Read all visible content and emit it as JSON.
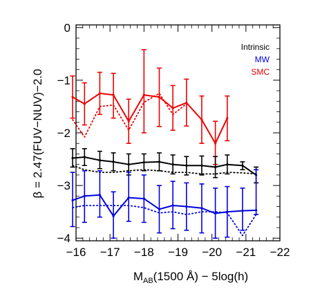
{
  "chart_data": {
    "type": "line",
    "xlabel": {
      "prefix": "M",
      "sub": "AB",
      "rest": "(1500 Å) − 5log(h)"
    },
    "ylabel": "β = 2.47(FUV−NUV)−2.0",
    "xlim": [
      -16,
      -22
    ],
    "ylim": [
      -4.05,
      0.05
    ],
    "x_ticks": [
      -16,
      -17,
      -18,
      -19,
      -20,
      -21,
      -22
    ],
    "x_tick_labels": [
      "−16",
      "−17",
      "−18",
      "−19",
      "−20",
      "−21",
      "−22"
    ],
    "y_ticks": [
      0,
      -1,
      -2,
      -3,
      -4
    ],
    "y_tick_labels": [
      "0",
      "−1",
      "−2",
      "−3",
      "−4"
    ],
    "legend_position": "top-right",
    "legend": [
      {
        "label": "Intrinsic",
        "color": "#000000"
      },
      {
        "label": "MW",
        "color": "#0000dd"
      },
      {
        "label": "SMC",
        "color": "#ee0000"
      }
    ],
    "x": [
      -15.9,
      -16.25,
      -16.7,
      -17.1,
      -17.55,
      -18.0,
      -18.45,
      -18.85,
      -19.25,
      -19.7,
      -20.1,
      -20.45,
      -20.9,
      -21.3
    ],
    "series": [
      {
        "name": "SMC",
        "color": "#ee0000",
        "style": "solid",
        "x": [
          -15.9,
          -16.25,
          -16.7,
          -17.1,
          -17.55,
          -18.0,
          -18.45,
          -18.85,
          -19.25,
          -19.7,
          -20.1,
          -20.45
        ],
        "y": [
          -1.32,
          -1.45,
          -1.25,
          -1.28,
          -1.78,
          -1.28,
          -1.32,
          -1.53,
          -1.43,
          -1.75,
          -2.2,
          -1.72
        ],
        "err_low": [
          -1.72,
          -1.85,
          -1.65,
          -1.72,
          -2.2,
          -2.0,
          -1.88,
          -1.95,
          -1.87,
          -2.2,
          -2.6,
          -2.15
        ],
        "err_high": [
          -0.92,
          -1.05,
          -0.85,
          -0.87,
          -1.36,
          -0.42,
          -0.77,
          -1.1,
          -0.98,
          -1.3,
          -1.78,
          -1.3
        ]
      },
      {
        "name": "SMC",
        "color": "#ee0000",
        "style": "dotted",
        "x": [
          -15.9,
          -16.25,
          -16.7,
          -17.1,
          -17.55,
          -18.0,
          -18.45,
          -18.85,
          -19.25
        ],
        "y": [
          -1.75,
          -2.08,
          -1.5,
          -1.47,
          -1.95,
          -1.42,
          -1.25,
          -1.65,
          -1.45
        ],
        "err_low": [],
        "err_high": []
      },
      {
        "name": "Intrinsic",
        "color": "#000000",
        "style": "solid",
        "x": [
          -15.9,
          -16.25,
          -16.7,
          -17.1,
          -17.55,
          -18.0,
          -18.45,
          -18.85,
          -19.25,
          -19.7,
          -20.1,
          -20.45,
          -20.9,
          -21.3
        ],
        "y": [
          -2.48,
          -2.46,
          -2.52,
          -2.55,
          -2.6,
          -2.56,
          -2.55,
          -2.6,
          -2.62,
          -2.62,
          -2.65,
          -2.6,
          -2.62,
          -2.8
        ],
        "err_low": [
          -2.65,
          -2.62,
          -2.68,
          -2.72,
          -2.8,
          -2.72,
          -2.72,
          -2.78,
          -2.8,
          -2.8,
          -2.85,
          -2.78,
          -2.7,
          -2.95
        ],
        "err_high": [
          -2.3,
          -2.3,
          -2.35,
          -2.38,
          -2.4,
          -2.4,
          -2.38,
          -2.42,
          -2.45,
          -2.44,
          -2.45,
          -2.42,
          -2.55,
          -2.65
        ]
      },
      {
        "name": "Intrinsic",
        "color": "#000000",
        "style": "dotted",
        "x": [
          -15.9,
          -16.25,
          -16.7,
          -17.1,
          -17.55,
          -18.0,
          -18.45,
          -18.85,
          -19.25,
          -19.7,
          -20.1,
          -20.45,
          -20.9,
          -21.3
        ],
        "y": [
          -2.62,
          -2.7,
          -2.75,
          -2.75,
          -2.72,
          -2.7,
          -2.72,
          -2.75,
          -2.75,
          -2.78,
          -2.78,
          -2.75,
          -2.76,
          -2.78
        ],
        "err_low": [],
        "err_high": []
      },
      {
        "name": "MW",
        "color": "#0000dd",
        "style": "solid",
        "x": [
          -15.9,
          -16.25,
          -16.7,
          -17.1,
          -17.55,
          -18.0,
          -18.45,
          -18.85,
          -19.25,
          -19.7,
          -20.1,
          -20.45,
          -20.9,
          -21.3
        ],
        "y": [
          -3.28,
          -3.2,
          -3.18,
          -3.58,
          -3.23,
          -3.25,
          -3.45,
          -3.38,
          -3.4,
          -3.43,
          -3.53,
          -3.5,
          -3.48,
          -3.47
        ],
        "err_low": [
          -3.78,
          -3.7,
          -3.6,
          -4.0,
          -3.68,
          -3.7,
          -3.9,
          -3.82,
          -3.85,
          -3.9,
          -4.0,
          -3.98,
          -3.85,
          -3.55
        ],
        "err_high": [
          -2.75,
          -2.72,
          -2.72,
          -3.12,
          -2.75,
          -2.8,
          -3.0,
          -2.92,
          -2.95,
          -2.97,
          -3.05,
          -3.02,
          -3.05,
          -2.7
        ]
      },
      {
        "name": "MW",
        "color": "#0000dd",
        "style": "dotted",
        "x": [
          -15.9,
          -16.25,
          -16.7,
          -17.1,
          -17.55,
          -18.0,
          -18.45,
          -18.85,
          -19.25,
          -19.7,
          -20.1,
          -20.45,
          -20.9,
          -21.3
        ],
        "y": [
          -3.42,
          -3.38,
          -3.38,
          -3.38,
          -3.38,
          -3.42,
          -3.52,
          -3.5,
          -3.55,
          -3.5,
          -3.5,
          -3.52,
          -3.95,
          -3.55
        ],
        "err_low": [],
        "err_high": []
      }
    ]
  }
}
